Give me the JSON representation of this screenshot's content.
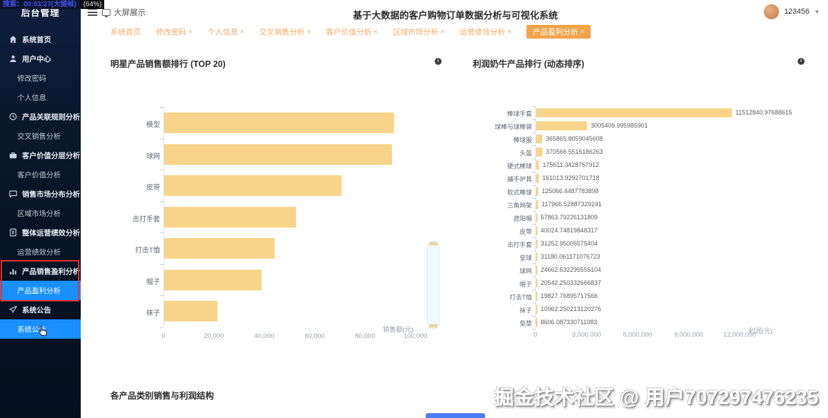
{
  "screen_recorder": {
    "timer_text": "搜索：00:03:27(大键帧)",
    "battery_text": "(64%)"
  },
  "sidebar": {
    "title": "后台管理",
    "items": [
      {
        "label": "系统首页",
        "level": 1,
        "icon": "home-icon",
        "active": false
      },
      {
        "label": "用户中心",
        "level": 1,
        "icon": "user-icon",
        "active": false
      },
      {
        "label": "修改密码",
        "level": 2,
        "active": false
      },
      {
        "label": "个人信息",
        "level": 2,
        "active": false
      },
      {
        "label": "产品关联规则分析",
        "level": 1,
        "icon": "rules-icon",
        "active": false
      },
      {
        "label": "交叉销售分析",
        "level": 2,
        "active": false
      },
      {
        "label": "客户价值分层分析",
        "level": 1,
        "icon": "briefcase-icon",
        "active": false
      },
      {
        "label": "客户价值分析",
        "level": 2,
        "active": false
      },
      {
        "label": "销售市场分布分析",
        "level": 1,
        "icon": "message-icon",
        "active": false
      },
      {
        "label": "区域市场分析",
        "level": 2,
        "active": false
      },
      {
        "label": "整体运营绩效分析",
        "level": 1,
        "icon": "doc-icon",
        "active": false
      },
      {
        "label": "运营绩效分析",
        "level": 2,
        "active": false
      },
      {
        "label": "产品销售盈利分析",
        "level": 1,
        "icon": "chart-icon",
        "active": false
      },
      {
        "label": "产品盈利分析",
        "level": 2,
        "active": true
      },
      {
        "label": "系统公告",
        "level": 1,
        "icon": "send-icon",
        "active": false
      },
      {
        "label": "系统公告",
        "level": 2,
        "active": true
      }
    ]
  },
  "header": {
    "fullscreen_label": "大屏展示",
    "title": "基于大数据的客户购物订单数据分析与可视化系统",
    "username": "123456"
  },
  "tabs": [
    {
      "label": "系统首页",
      "closable": false,
      "active": false
    },
    {
      "label": "修改密码",
      "closable": true,
      "active": false
    },
    {
      "label": "个人信息",
      "closable": true,
      "active": false
    },
    {
      "label": "交叉销售分析",
      "closable": true,
      "active": false
    },
    {
      "label": "客户价值分析",
      "closable": true,
      "active": false
    },
    {
      "label": "区域市场分析",
      "closable": true,
      "active": false
    },
    {
      "label": "运营绩效分析",
      "closable": true,
      "active": false
    },
    {
      "label": "产品盈利分析",
      "closable": true,
      "active": true
    }
  ],
  "sections": {
    "bottom_title": "各产品类别销售与利润结构"
  },
  "watermark": {
    "text": "掘金技术社区 @ 用户707297476235"
  },
  "colors": {
    "accent_blue": "#1890ff",
    "tab_orange": "#f2a44a",
    "bar_yellow": "#f8d48a",
    "annotation_red": "#e8312f"
  },
  "chart_data": [
    {
      "type": "bar",
      "orientation": "horizontal",
      "title": "明星产品销售额排行 (TOP 20)",
      "categories": [
        "模型",
        "球网",
        "皮带",
        "击打手套",
        "打击T恤",
        "帽子",
        "袜子"
      ],
      "values": [
        91200,
        90400,
        70400,
        52300,
        43800,
        38600,
        21100
      ],
      "xlabel": "销售额(元)",
      "xlim": [
        0,
        100000
      ],
      "xticks": [
        "0",
        "20,000",
        "40,000",
        "60,000",
        "80,000",
        "100,000"
      ],
      "xtick_values": [
        0,
        20000,
        40000,
        60000,
        80000,
        100000
      ],
      "grid": false,
      "bar_color": "#f8d48a"
    },
    {
      "type": "bar",
      "orientation": "horizontal",
      "title": "利润奶牛产品排行 (动态排序)",
      "categories": [
        "棒球手套",
        "球棒与球棒袋",
        "棒球服",
        "头盔",
        "硬式棒球",
        "捕手护具",
        "软式棒球",
        "三角网架",
        "遮阳帽",
        "皮带",
        "击打手套",
        "垒球",
        "球网",
        "帽子",
        "打击T恤",
        "袜子",
        "垒垫"
      ],
      "values": [
        11512840.97688615,
        3005409.995985901,
        365865.8059045608,
        370566.5515186263,
        175611.3428757912,
        161013.9292701718,
        125066.4487783898,
        117966.52887329241,
        57863.79226131809,
        40024.74819848317,
        31252.95005575404,
        31180.061171076723,
        24662.632295555104,
        20542.250332666837,
        19827.76895717566,
        10962.250213120276,
        8606.087330711083
      ],
      "value_labels": [
        "11512840.97688615",
        "3005409.995985901",
        "365865.8059045608",
        "370566.5515186263",
        "175611.3428757912",
        "161013.9292701718",
        "125066.4487783898",
        "117966.52887329241",
        "57863.79226131809",
        "40024.74819848317",
        "31252.95005575404",
        "31180.061171076723",
        "24662.632295555104",
        "20542.250332666837",
        "19827.76895717566",
        "10962.250213120276",
        "8606.087330711083"
      ],
      "xlabel": "利润(元)",
      "xlim": [
        0,
        12000000
      ],
      "xticks": [
        "0",
        "3,000,000",
        "6,000,000",
        "9,000,000",
        "12,000,000"
      ],
      "xtick_values": [
        0,
        3000000,
        6000000,
        9000000,
        12000000
      ],
      "grid": false,
      "bar_color": "#f8d48a"
    }
  ]
}
